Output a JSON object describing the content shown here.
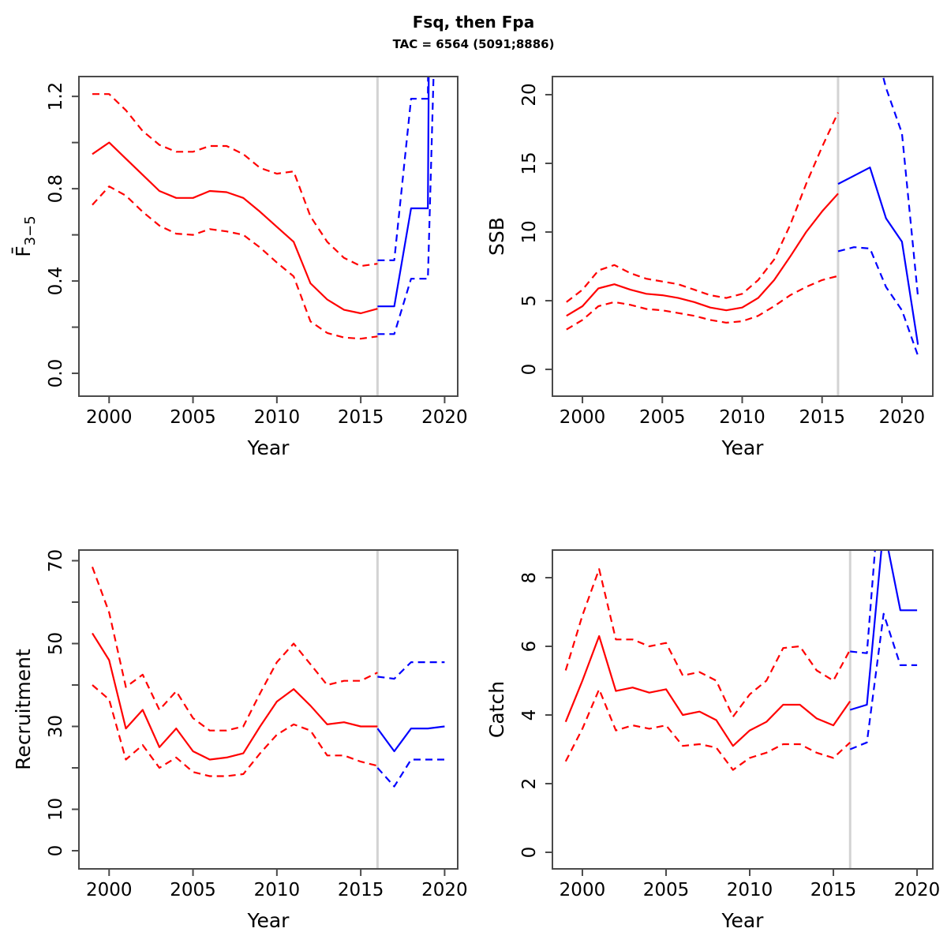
{
  "header": {
    "title": "Fsq, then Fpa",
    "subtitle": "TAC = 6564 (5091;8886)"
  },
  "colors": {
    "historical": "#ff0000",
    "projection": "#0000ff",
    "divider": "#d3d3d3",
    "frame": "#4a4a4a",
    "text": "#000000"
  },
  "divider_year": 2016,
  "chart_data": [
    {
      "id": "fbar",
      "type": "line",
      "ylabel": "F̄",
      "ylabel_sub": "3−5",
      "xlabel": "Year",
      "grid": false,
      "legend": "none",
      "xlim": [
        1998.2,
        2020.78
      ],
      "ylim": [
        -0.099,
        1.286
      ],
      "xticks": [
        2000,
        2005,
        2010,
        2015,
        2020
      ],
      "xtick_labels": [
        "2000",
        "2005",
        "2010",
        "2015",
        "2020"
      ],
      "yticks": [
        0,
        0.2,
        0.4,
        0.6,
        0.8,
        1.0,
        1.2
      ],
      "ytick_labels": [
        "0.0",
        "",
        "0.4",
        "",
        "0.8",
        "",
        "1.2"
      ],
      "series": [
        {
          "name": "historical-upper-ci",
          "period": "historical",
          "style": "dashed",
          "x": [
            1999,
            2000,
            2001,
            2002,
            2003,
            2004,
            2005,
            2006,
            2007,
            2008,
            2009,
            2010,
            2011,
            2012,
            2013,
            2014,
            2015,
            2016
          ],
          "y": [
            1.21,
            1.21,
            1.14,
            1.05,
            0.99,
            0.96,
            0.96,
            0.985,
            0.985,
            0.95,
            0.89,
            0.865,
            0.875,
            0.68,
            0.57,
            0.5,
            0.465,
            0.475
          ]
        },
        {
          "name": "historical-median",
          "period": "historical",
          "style": "solid",
          "x": [
            1999,
            2000,
            2001,
            2002,
            2003,
            2004,
            2005,
            2006,
            2007,
            2008,
            2009,
            2010,
            2011,
            2012,
            2013,
            2014,
            2015,
            2016
          ],
          "y": [
            0.95,
            1.0,
            0.93,
            0.86,
            0.79,
            0.76,
            0.76,
            0.79,
            0.785,
            0.76,
            0.7,
            0.635,
            0.57,
            0.39,
            0.32,
            0.275,
            0.26,
            0.28
          ]
        },
        {
          "name": "historical-lower-ci",
          "period": "historical",
          "style": "dashed",
          "x": [
            1999,
            2000,
            2001,
            2002,
            2003,
            2004,
            2005,
            2006,
            2007,
            2008,
            2009,
            2010,
            2011,
            2012,
            2013,
            2014,
            2015,
            2016
          ],
          "y": [
            0.73,
            0.81,
            0.77,
            0.7,
            0.64,
            0.605,
            0.6,
            0.625,
            0.615,
            0.6,
            0.545,
            0.48,
            0.42,
            0.225,
            0.175,
            0.155,
            0.15,
            0.16
          ]
        },
        {
          "name": "projection-upper-ci",
          "period": "projection",
          "style": "dashed",
          "x": [
            2016,
            2017,
            2018,
            2019,
            2020
          ],
          "y": [
            0.49,
            0.49,
            1.19,
            1.19,
            12
          ]
        },
        {
          "name": "projection-median",
          "period": "projection",
          "style": "solid",
          "x": [
            2016,
            2017,
            2018,
            2019,
            2020
          ],
          "y": [
            0.29,
            0.29,
            0.715,
            0.715,
            12
          ]
        },
        {
          "name": "projection-lower-ci",
          "period": "projection",
          "style": "dashed",
          "x": [
            2016,
            2017,
            2018,
            2019,
            2020
          ],
          "y": [
            0.17,
            0.17,
            0.41,
            0.41,
            3.0
          ]
        }
      ]
    },
    {
      "id": "ssb",
      "type": "line",
      "ylabel": "SSB",
      "ylabel_sub": "",
      "xlabel": "Year",
      "grid": false,
      "legend": "none",
      "xlim": [
        1998.12,
        2021.93
      ],
      "ylim": [
        -1.95,
        21.32
      ],
      "xticks": [
        2000,
        2005,
        2010,
        2015,
        2020
      ],
      "xtick_labels": [
        "2000",
        "2005",
        "2010",
        "2015",
        "2020"
      ],
      "yticks": [
        0,
        5,
        10,
        15,
        20
      ],
      "ytick_labels": [
        "0",
        "5",
        "10",
        "15",
        "20"
      ],
      "series": [
        {
          "name": "historical-upper-ci",
          "period": "historical",
          "style": "dashed",
          "x": [
            1999,
            2000,
            2001,
            2002,
            2003,
            2004,
            2005,
            2006,
            2007,
            2008,
            2009,
            2010,
            2011,
            2012,
            2013,
            2014,
            2015,
            2016
          ],
          "y": [
            4.9,
            5.8,
            7.2,
            7.6,
            7.0,
            6.6,
            6.4,
            6.2,
            5.8,
            5.4,
            5.2,
            5.5,
            6.5,
            8.0,
            10.5,
            13.5,
            16.2,
            18.7
          ]
        },
        {
          "name": "historical-median",
          "period": "historical",
          "style": "solid",
          "x": [
            1999,
            2000,
            2001,
            2002,
            2003,
            2004,
            2005,
            2006,
            2007,
            2008,
            2009,
            2010,
            2011,
            2012,
            2013,
            2014,
            2015,
            2016
          ],
          "y": [
            3.9,
            4.6,
            5.9,
            6.2,
            5.8,
            5.5,
            5.4,
            5.2,
            4.9,
            4.5,
            4.3,
            4.5,
            5.2,
            6.5,
            8.2,
            10.0,
            11.5,
            12.8
          ]
        },
        {
          "name": "historical-lower-ci",
          "period": "historical",
          "style": "dashed",
          "x": [
            1999,
            2000,
            2001,
            2002,
            2003,
            2004,
            2005,
            2006,
            2007,
            2008,
            2009,
            2010,
            2011,
            2012,
            2013,
            2014,
            2015,
            2016
          ],
          "y": [
            2.9,
            3.6,
            4.6,
            4.9,
            4.7,
            4.4,
            4.3,
            4.1,
            3.9,
            3.6,
            3.4,
            3.5,
            3.9,
            4.6,
            5.4,
            6.0,
            6.5,
            6.8
          ]
        },
        {
          "name": "projection-upper-ci",
          "period": "projection",
          "style": "dashed",
          "x": [
            2016,
            2017,
            2018,
            2019,
            2020,
            2021
          ],
          "y": [
            26,
            27,
            25,
            20.5,
            17.2,
            5.3
          ]
        },
        {
          "name": "projection-median",
          "period": "projection",
          "style": "solid",
          "x": [
            2016,
            2017,
            2018,
            2019,
            2020,
            2021
          ],
          "y": [
            13.5,
            14.1,
            14.7,
            11.0,
            9.3,
            1.8
          ]
        },
        {
          "name": "projection-lower-ci",
          "period": "projection",
          "style": "dashed",
          "x": [
            2016,
            2017,
            2018,
            2019,
            2020,
            2021
          ],
          "y": [
            8.6,
            8.9,
            8.8,
            6.0,
            4.3,
            1.0
          ]
        }
      ]
    },
    {
      "id": "recruitment",
      "type": "line",
      "ylabel": "Recruitment",
      "ylabel_sub": "",
      "xlabel": "Year",
      "grid": false,
      "legend": "none",
      "xlim": [
        1998.2,
        2020.78
      ],
      "ylim": [
        -4.38,
        72.57
      ],
      "xticks": [
        2000,
        2005,
        2010,
        2015,
        2020
      ],
      "xtick_labels": [
        "2000",
        "2005",
        "2010",
        "2015",
        "2020"
      ],
      "yticks": [
        0,
        10,
        20,
        30,
        40,
        50,
        60,
        70
      ],
      "ytick_labels": [
        "0",
        "10",
        "",
        "30",
        "",
        "50",
        "",
        "70"
      ],
      "series": [
        {
          "name": "historical-upper-ci",
          "period": "historical",
          "style": "dashed",
          "x": [
            1999,
            2000,
            2001,
            2002,
            2003,
            2004,
            2005,
            2006,
            2007,
            2008,
            2009,
            2010,
            2011,
            2012,
            2013,
            2014,
            2015,
            2016
          ],
          "y": [
            68.5,
            57.5,
            39.5,
            42.5,
            34,
            38.5,
            32,
            29,
            29,
            30,
            38,
            45.5,
            50,
            45,
            40,
            41,
            41,
            43
          ]
        },
        {
          "name": "historical-median",
          "period": "historical",
          "style": "solid",
          "x": [
            1999,
            2000,
            2001,
            2002,
            2003,
            2004,
            2005,
            2006,
            2007,
            2008,
            2009,
            2010,
            2011,
            2012,
            2013,
            2014,
            2015,
            2016
          ],
          "y": [
            52.5,
            46,
            29.5,
            34,
            25,
            29.5,
            24,
            22,
            22.5,
            23.5,
            30,
            36,
            39,
            35,
            30.5,
            31,
            30,
            30
          ]
        },
        {
          "name": "historical-lower-ci",
          "period": "historical",
          "style": "dashed",
          "x": [
            1999,
            2000,
            2001,
            2002,
            2003,
            2004,
            2005,
            2006,
            2007,
            2008,
            2009,
            2010,
            2011,
            2012,
            2013,
            2014,
            2015,
            2016
          ],
          "y": [
            40,
            36.5,
            22,
            25.5,
            20,
            22.5,
            19,
            18,
            18,
            18.5,
            23.5,
            28,
            30.5,
            29,
            23,
            23,
            21.5,
            20.5
          ]
        },
        {
          "name": "projection-upper-ci",
          "period": "projection",
          "style": "dashed",
          "x": [
            2016,
            2017,
            2018,
            2019,
            2020
          ],
          "y": [
            42,
            41.5,
            45.5,
            45.5,
            45.5
          ]
        },
        {
          "name": "projection-median",
          "period": "projection",
          "style": "solid",
          "x": [
            2016,
            2017,
            2018,
            2019,
            2020
          ],
          "y": [
            29.5,
            24,
            29.5,
            29.5,
            30
          ]
        },
        {
          "name": "projection-lower-ci",
          "period": "projection",
          "style": "dashed",
          "x": [
            2016,
            2017,
            2018,
            2019,
            2020
          ],
          "y": [
            20,
            15.5,
            22,
            22,
            22
          ]
        }
      ]
    },
    {
      "id": "catch",
      "type": "line",
      "ylabel": "Catch",
      "ylabel_sub": "",
      "xlabel": "Year",
      "grid": false,
      "legend": "none",
      "xlim": [
        1998.21,
        2020.94
      ],
      "ylim": [
        -0.483,
        8.805
      ],
      "xticks": [
        2000,
        2005,
        2010,
        2015,
        2020
      ],
      "xtick_labels": [
        "2000",
        "2005",
        "2010",
        "2015",
        "2020"
      ],
      "yticks": [
        0,
        2,
        4,
        6,
        8
      ],
      "ytick_labels": [
        "0",
        "2",
        "4",
        "6",
        "8"
      ],
      "series": [
        {
          "name": "historical-upper-ci",
          "period": "historical",
          "style": "dashed",
          "x": [
            1999,
            2000,
            2001,
            2002,
            2003,
            2004,
            2005,
            2006,
            2007,
            2008,
            2009,
            2010,
            2011,
            2012,
            2013,
            2014,
            2015,
            2016
          ],
          "y": [
            5.3,
            6.9,
            8.25,
            6.2,
            6.2,
            6.0,
            6.1,
            5.15,
            5.25,
            5.0,
            3.95,
            4.6,
            5.0,
            5.95,
            6.0,
            5.3,
            5.0,
            5.9
          ]
        },
        {
          "name": "historical-median",
          "period": "historical",
          "style": "solid",
          "x": [
            1999,
            2000,
            2001,
            2002,
            2003,
            2004,
            2005,
            2006,
            2007,
            2008,
            2009,
            2010,
            2011,
            2012,
            2013,
            2014,
            2015,
            2016
          ],
          "y": [
            3.8,
            5.0,
            6.3,
            4.7,
            4.8,
            4.65,
            4.75,
            4.0,
            4.1,
            3.85,
            3.1,
            3.55,
            3.8,
            4.3,
            4.3,
            3.9,
            3.7,
            4.4
          ]
        },
        {
          "name": "historical-lower-ci",
          "period": "historical",
          "style": "dashed",
          "x": [
            1999,
            2000,
            2001,
            2002,
            2003,
            2004,
            2005,
            2006,
            2007,
            2008,
            2009,
            2010,
            2011,
            2012,
            2013,
            2014,
            2015,
            2016
          ],
          "y": [
            2.65,
            3.6,
            4.75,
            3.55,
            3.7,
            3.6,
            3.7,
            3.1,
            3.15,
            3.05,
            2.4,
            2.75,
            2.9,
            3.15,
            3.15,
            2.9,
            2.75,
            3.2
          ]
        },
        {
          "name": "projection-upper-ci",
          "period": "projection",
          "style": "dashed",
          "x": [
            2016,
            2017,
            2018,
            2019,
            2020
          ],
          "y": [
            5.85,
            5.8,
            12,
            9.5,
            9.5
          ]
        },
        {
          "name": "projection-median",
          "period": "projection",
          "style": "solid",
          "x": [
            2016,
            2017,
            2018,
            2019,
            2020
          ],
          "y": [
            4.15,
            4.3,
            9.5,
            7.05,
            7.05
          ]
        },
        {
          "name": "projection-lower-ci",
          "period": "projection",
          "style": "dashed",
          "x": [
            2016,
            2017,
            2018,
            2019,
            2020
          ],
          "y": [
            3.0,
            3.2,
            6.95,
            5.45,
            5.45
          ]
        }
      ]
    }
  ]
}
